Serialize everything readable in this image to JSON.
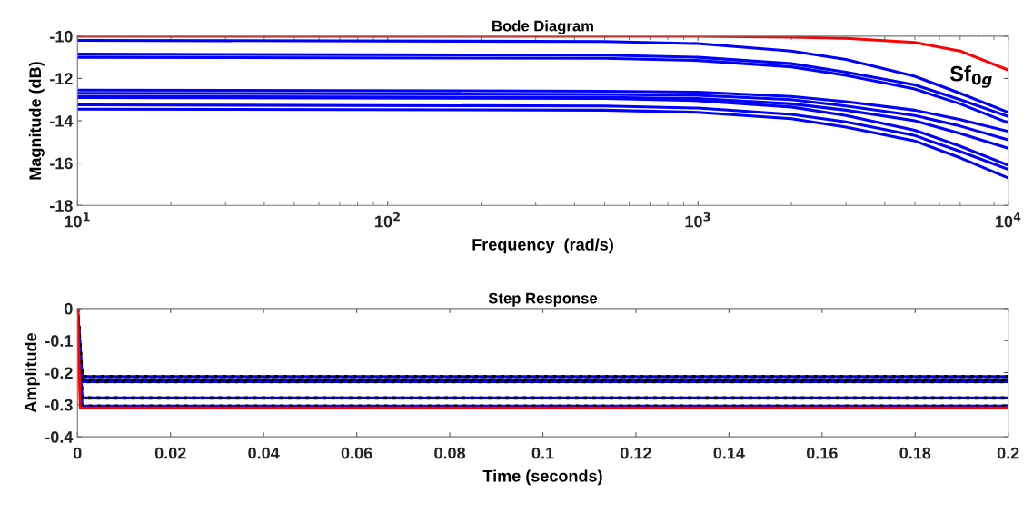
{
  "chart_data": [
    {
      "type": "line",
      "title": "Bode Diagram",
      "xlabel": "Frequency  (rad/s)",
      "ylabel": "Magnitude (dB)",
      "log": "x",
      "xlim": [
        10,
        10000
      ],
      "ylim": [
        -18,
        -10
      ],
      "xticks": [
        {
          "value": 10,
          "label": "10$^{1}$"
        },
        {
          "value": 100,
          "label": "10$^{2}$"
        },
        {
          "value": 1000,
          "label": "10$^{3}$"
        },
        {
          "value": 10000,
          "label": "10$^{4}$"
        }
      ],
      "yticks": [
        -18,
        -16,
        -14,
        -12,
        -10
      ],
      "grid": false,
      "legend": false,
      "x": [
        10,
        500,
        1000,
        2000,
        3000,
        5000,
        7000,
        10000
      ],
      "series": [
        {
          "color": "#0000ff",
          "values": [
            -10.2,
            -10.25,
            -10.35,
            -10.7,
            -11.1,
            -11.9,
            -12.7,
            -13.6
          ]
        },
        {
          "color": "#0000ff",
          "values": [
            -10.85,
            -10.9,
            -11.0,
            -11.3,
            -11.7,
            -12.3,
            -13.0,
            -13.8
          ]
        },
        {
          "color": "#0000ff",
          "values": [
            -11.0,
            -11.05,
            -11.15,
            -11.45,
            -11.85,
            -12.5,
            -13.2,
            -14.1
          ]
        },
        {
          "color": "#0000ff",
          "values": [
            -12.55,
            -12.6,
            -12.65,
            -12.85,
            -13.1,
            -13.5,
            -13.95,
            -14.5
          ]
        },
        {
          "color": "#0000ff",
          "values": [
            -12.7,
            -12.75,
            -12.8,
            -13.0,
            -13.3,
            -13.75,
            -14.25,
            -14.9
          ]
        },
        {
          "color": "#0000ff",
          "values": [
            -12.85,
            -12.9,
            -12.95,
            -13.2,
            -13.5,
            -14.0,
            -14.6,
            -15.3
          ]
        },
        {
          "color": "#0000ff",
          "values": [
            -12.9,
            -12.95,
            -13.05,
            -13.35,
            -13.75,
            -14.45,
            -15.2,
            -16.1
          ]
        },
        {
          "color": "#0000ff",
          "values": [
            -13.25,
            -13.3,
            -13.4,
            -13.7,
            -14.05,
            -14.7,
            -15.45,
            -16.3
          ]
        },
        {
          "color": "#0000ff",
          "values": [
            -13.45,
            -13.5,
            -13.6,
            -13.9,
            -14.3,
            -14.95,
            -15.75,
            -16.7
          ]
        },
        {
          "color": "#ff0000",
          "values": [
            -10.0,
            -10.0,
            -10.0,
            -10.05,
            -10.1,
            -10.3,
            -10.7,
            -11.6
          ]
        }
      ],
      "annotations": [
        "Sf$_{0g}$"
      ]
    },
    {
      "type": "line",
      "title": "Step Response",
      "xlabel": "Time (seconds)",
      "ylabel": "Amplitude",
      "xlim": [
        0,
        0.2
      ],
      "ylim": [
        -0.4,
        0
      ],
      "xticks": [
        0,
        0.02,
        0.04,
        0.06,
        0.08,
        0.1,
        0.12,
        0.14,
        0.16,
        0.18,
        0.2
      ],
      "yticks": [
        -0.4,
        -0.3,
        -0.2,
        -0.1,
        0
      ],
      "grid": false,
      "legend": false,
      "x": [
        0,
        0.001,
        0.2
      ],
      "series": [
        {
          "color": "#0000ff",
          "line_style": "solid",
          "values": [
            0,
            -0.212,
            -0.212
          ]
        },
        {
          "color": "#0000ff",
          "line_style": "solid",
          "values": [
            0,
            -0.222,
            -0.222
          ]
        },
        {
          "color": "#0000ff",
          "line_style": "solid",
          "values": [
            0,
            -0.228,
            -0.228
          ]
        },
        {
          "color": "#0000ff",
          "line_style": "solid",
          "values": [
            0,
            -0.279,
            -0.279
          ]
        },
        {
          "color": "#0000ff",
          "line_style": "solid",
          "values": [
            0,
            -0.304,
            -0.304
          ]
        },
        {
          "color": "#000000",
          "line_style": "dotted",
          "values": [
            0,
            -0.212,
            -0.212
          ]
        },
        {
          "color": "#000000",
          "line_style": "dotted",
          "values": [
            0,
            -0.222,
            -0.222
          ]
        },
        {
          "color": "#000000",
          "line_style": "dotted",
          "values": [
            0,
            -0.228,
            -0.228
          ]
        },
        {
          "color": "#000000",
          "line_style": "dotted",
          "values": [
            0,
            -0.279,
            -0.279
          ]
        },
        {
          "color": "#000000",
          "line_style": "dotted",
          "values": [
            0,
            -0.304,
            -0.304
          ]
        },
        {
          "color": "#ff0000",
          "line_style": "solid",
          "x": [
            0,
            0.0006,
            0.2
          ],
          "values": [
            0,
            -0.31,
            -0.31
          ]
        }
      ]
    }
  ]
}
